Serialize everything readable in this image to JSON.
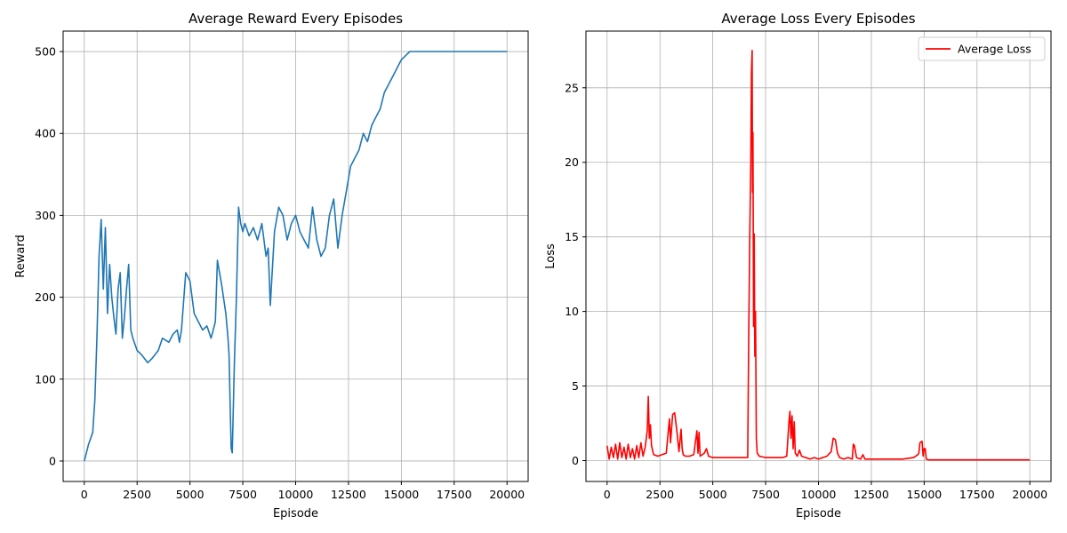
{
  "chart_data": [
    {
      "type": "line",
      "title": "Average Reward Every Episodes",
      "xlabel": "Episode",
      "ylabel": "Reward",
      "xlim": [
        -1000,
        21000
      ],
      "ylim": [
        -25,
        525
      ],
      "xticks": [
        0,
        2500,
        5000,
        7500,
        10000,
        12500,
        15000,
        17500,
        20000
      ],
      "yticks": [
        0,
        100,
        200,
        300,
        400,
        500
      ],
      "grid": true,
      "legend": null,
      "series": [
        {
          "color": "#1f77b4",
          "x": [
            0,
            200,
            400,
            500,
            600,
            700,
            800,
            900,
            1000,
            1100,
            1200,
            1300,
            1400,
            1500,
            1600,
            1700,
            1800,
            1900,
            2000,
            2100,
            2200,
            2300,
            2500,
            2700,
            3000,
            3200,
            3500,
            3700,
            4000,
            4200,
            4400,
            4500,
            4600,
            4800,
            5000,
            5200,
            5400,
            5600,
            5800,
            6000,
            6200,
            6300,
            6500,
            6700,
            6800,
            6850,
            6900,
            6950,
            7000,
            7100,
            7200,
            7300,
            7400,
            7500,
            7600,
            7800,
            8000,
            8200,
            8400,
            8600,
            8700,
            8800,
            9000,
            9200,
            9400,
            9600,
            9800,
            10000,
            10200,
            10400,
            10600,
            10800,
            11000,
            11200,
            11400,
            11600,
            11800,
            12000,
            12200,
            12400,
            12600,
            12800,
            13000,
            13200,
            13400,
            13600,
            13800,
            14000,
            14200,
            14400,
            14600,
            14800,
            15000,
            15200,
            15400,
            15600,
            16000,
            17000,
            18000,
            19000,
            20000
          ],
          "y": [
            0,
            20,
            35,
            75,
            150,
            250,
            295,
            210,
            285,
            180,
            240,
            200,
            175,
            155,
            210,
            230,
            150,
            175,
            210,
            240,
            160,
            150,
            135,
            130,
            120,
            125,
            135,
            150,
            145,
            155,
            160,
            145,
            160,
            230,
            220,
            180,
            170,
            160,
            165,
            150,
            170,
            245,
            215,
            180,
            150,
            130,
            70,
            15,
            10,
            120,
            200,
            310,
            290,
            280,
            290,
            275,
            285,
            270,
            290,
            250,
            260,
            190,
            280,
            310,
            300,
            270,
            290,
            300,
            280,
            270,
            260,
            310,
            270,
            250,
            260,
            300,
            320,
            260,
            300,
            330,
            360,
            370,
            380,
            400,
            390,
            410,
            420,
            430,
            450,
            460,
            470,
            480,
            490,
            495,
            500,
            500,
            500,
            500,
            500,
            500,
            500
          ]
        }
      ]
    },
    {
      "type": "line",
      "title": "Average Loss Every Episodes",
      "xlabel": "Episode",
      "ylabel": "Loss",
      "xlim": [
        -1000,
        21000
      ],
      "ylim": [
        -1.4,
        28.8
      ],
      "xticks": [
        0,
        2500,
        5000,
        7500,
        10000,
        12500,
        15000,
        17500,
        20000
      ],
      "yticks": [
        0,
        5,
        10,
        15,
        20,
        25
      ],
      "grid": true,
      "legend": "top-right",
      "series": [
        {
          "name": "Average Loss",
          "color": "#ff0000",
          "x": [
            0,
            100,
            200,
            300,
            400,
            500,
            600,
            700,
            800,
            900,
            1000,
            1100,
            1200,
            1300,
            1400,
            1500,
            1600,
            1700,
            1800,
            1900,
            1950,
            2000,
            2050,
            2100,
            2200,
            2400,
            2600,
            2800,
            2950,
            3000,
            3100,
            3200,
            3300,
            3400,
            3500,
            3550,
            3600,
            3700,
            3900,
            4100,
            4250,
            4300,
            4350,
            4400,
            4600,
            4700,
            4800,
            5000,
            5500,
            6000,
            6500,
            6650,
            6700,
            6750,
            6800,
            6830,
            6860,
            6880,
            6900,
            6930,
            6960,
            6990,
            7020,
            7060,
            7100,
            7200,
            7500,
            8000,
            8300,
            8500,
            8600,
            8650,
            8700,
            8750,
            8800,
            8850,
            8900,
            9000,
            9100,
            9200,
            9400,
            9600,
            9800,
            10000,
            10200,
            10400,
            10600,
            10700,
            10800,
            10900,
            11000,
            11200,
            11400,
            11600,
            11650,
            11700,
            11800,
            12000,
            12100,
            12200,
            12500,
            13000,
            13500,
            14000,
            14500,
            14700,
            14750,
            14800,
            14900,
            14950,
            15000,
            15050,
            15100,
            15200,
            15500,
            16000,
            17000,
            18000,
            19000,
            20000
          ],
          "y": [
            1.0,
            0.1,
            0.9,
            0.2,
            1.1,
            0.1,
            1.2,
            0.2,
            0.9,
            0.1,
            1.1,
            0.2,
            0.8,
            0.1,
            1.0,
            0.2,
            1.2,
            0.3,
            0.9,
            2.0,
            4.3,
            1.5,
            2.4,
            1.0,
            0.4,
            0.3,
            0.4,
            0.5,
            2.8,
            1.2,
            3.1,
            3.2,
            2.0,
            0.6,
            2.1,
            0.8,
            0.4,
            0.3,
            0.3,
            0.4,
            2.0,
            0.5,
            1.9,
            0.3,
            0.5,
            0.8,
            0.3,
            0.2,
            0.2,
            0.2,
            0.2,
            0.2,
            8.0,
            15.0,
            20.0,
            26.0,
            27.5,
            18.0,
            22.0,
            9.0,
            15.2,
            7.0,
            10.0,
            1.5,
            0.5,
            0.3,
            0.2,
            0.2,
            0.2,
            0.3,
            2.5,
            3.3,
            1.5,
            3.0,
            0.8,
            2.6,
            0.5,
            0.3,
            0.7,
            0.3,
            0.2,
            0.1,
            0.2,
            0.1,
            0.2,
            0.3,
            0.6,
            1.5,
            1.4,
            0.5,
            0.2,
            0.1,
            0.2,
            0.1,
            1.1,
            1.0,
            0.2,
            0.1,
            0.4,
            0.1,
            0.1,
            0.1,
            0.1,
            0.1,
            0.2,
            0.4,
            0.5,
            1.2,
            1.3,
            0.3,
            0.8,
            0.8,
            0.1,
            0.05,
            0.05,
            0.05,
            0.05,
            0.05,
            0.05,
            0.05
          ]
        }
      ]
    }
  ]
}
